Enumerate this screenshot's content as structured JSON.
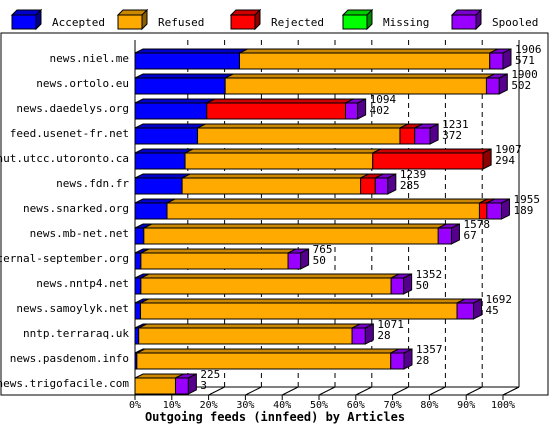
{
  "chart_data": {
    "type": "bar",
    "orientation": "horizontal",
    "stacked": true,
    "xlabel": "Outgoing feeds (innfeed) by Articles",
    "ylabel": "",
    "xlim": [
      0,
      100
    ],
    "grid": true,
    "legend_placement": "top",
    "series": [
      {
        "name": "Accepted",
        "color": "#0000ff",
        "values": [
          28.4,
          24.5,
          19.5,
          17.0,
          13.6,
          12.8,
          8.7,
          2.4,
          1.6,
          1.6,
          1.5,
          1.0,
          0.5,
          0.0
        ]
      },
      {
        "name": "Refused",
        "color": "#ffaa00",
        "values": [
          68.0,
          71.0,
          0.0,
          55.0,
          51.0,
          48.5,
          84.9,
          80.0,
          40.0,
          68.0,
          86.0,
          58.0,
          69.0,
          11.0
        ]
      },
      {
        "name": "Rejected",
        "color": "#ff0000",
        "values": [
          0.0,
          0.0,
          37.7,
          4.0,
          30.0,
          4.0,
          2.0,
          0.0,
          0.0,
          0.0,
          0.0,
          0.0,
          0.0,
          0.0
        ]
      },
      {
        "name": "Missing",
        "color": "#00ff00",
        "values": [
          0,
          0,
          0,
          0,
          0,
          0,
          0,
          0,
          0,
          0,
          0,
          0,
          0,
          0
        ]
      },
      {
        "name": "Spooled",
        "color": "#9900ff",
        "values": [
          3.6,
          3.5,
          3.3,
          4.2,
          0.0,
          3.4,
          4.0,
          3.6,
          3.4,
          3.4,
          4.5,
          3.6,
          3.6,
          3.5
        ]
      }
    ],
    "rows": [
      {
        "label": "news.niel.me",
        "total": "1906",
        "secondary": "571"
      },
      {
        "label": "news.ortolo.eu",
        "total": "1900",
        "secondary": "502"
      },
      {
        "label": "news.daedelys.org",
        "total": "1094",
        "secondary": "402"
      },
      {
        "label": "feed.usenet-fr.net",
        "total": "1231",
        "secondary": "372"
      },
      {
        "label": "nut.utcc.utoronto.ca",
        "total": "1907",
        "secondary": "294"
      },
      {
        "label": "news.fdn.fr",
        "total": "1239",
        "secondary": "285"
      },
      {
        "label": "news.snarked.org",
        "total": "1955",
        "secondary": "189"
      },
      {
        "label": "news.mb-net.net",
        "total": "1578",
        "secondary": "67"
      },
      {
        "label": "eternal-september.org",
        "total": "765",
        "secondary": "50"
      },
      {
        "label": "news.nntp4.net",
        "total": "1352",
        "secondary": "50"
      },
      {
        "label": "news.samoylyk.net",
        "total": "1692",
        "secondary": "45"
      },
      {
        "label": "nntp.terraraq.uk",
        "total": "1071",
        "secondary": "28"
      },
      {
        "label": "news.pasdenom.info",
        "total": "1357",
        "secondary": "28"
      },
      {
        "label": "news.trigofacile.com",
        "total": "225",
        "secondary": "3"
      }
    ],
    "xticks": [
      "0%",
      "10%",
      "20%",
      "30%",
      "40%",
      "50%",
      "60%",
      "70%",
      "80%",
      "90%",
      "100%"
    ],
    "tick_values": [
      0,
      10,
      20,
      30,
      40,
      50,
      60,
      70,
      80,
      90,
      100
    ]
  }
}
